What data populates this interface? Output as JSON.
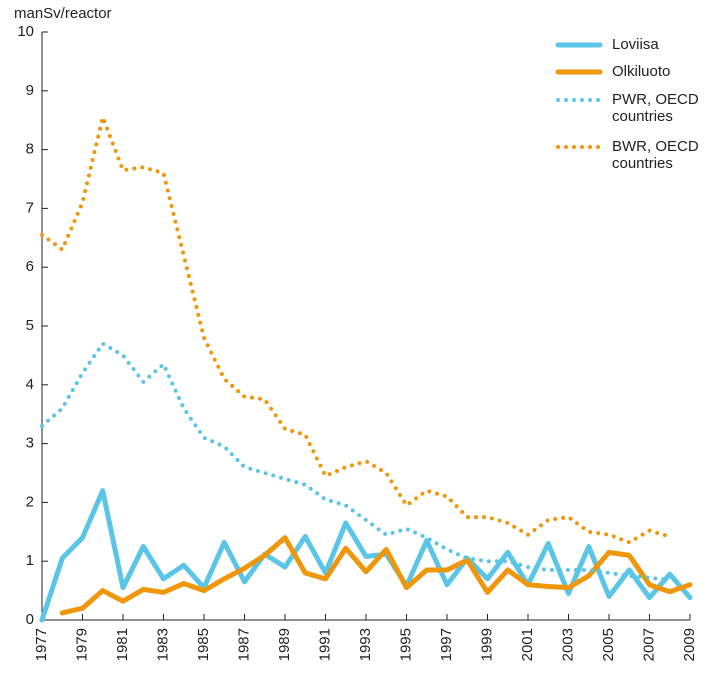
{
  "chart_data": {
    "type": "line",
    "ylabel": "manSv/reactor",
    "x": [
      1977,
      1978,
      1979,
      1980,
      1981,
      1982,
      1983,
      1984,
      1985,
      1986,
      1987,
      1988,
      1989,
      1990,
      1991,
      1992,
      1993,
      1994,
      1995,
      1996,
      1997,
      1998,
      1999,
      2000,
      2001,
      2002,
      2003,
      2004,
      2005,
      2006,
      2007,
      2008,
      2009
    ],
    "series": [
      {
        "name": "Loviisa",
        "color": "#5bc5e8",
        "style": "solid",
        "values": [
          0,
          1.05,
          1.4,
          2.2,
          0.55,
          1.25,
          0.7,
          0.93,
          0.55,
          1.32,
          0.65,
          1.12,
          0.9,
          1.42,
          0.8,
          1.65,
          1.08,
          1.12,
          0.58,
          1.35,
          0.6,
          1.05,
          0.7,
          1.15,
          0.6,
          1.3,
          0.45,
          1.25,
          0.4,
          0.85,
          0.38,
          0.78,
          0.38
        ]
      },
      {
        "name": "Olkiluoto",
        "color": "#f0960a",
        "style": "solid",
        "values": [
          null,
          0.12,
          0.2,
          0.5,
          0.32,
          0.52,
          0.47,
          0.62,
          0.5,
          0.7,
          0.88,
          1.1,
          1.4,
          0.8,
          0.7,
          1.22,
          0.82,
          1.2,
          0.55,
          0.85,
          0.85,
          1.02,
          0.47,
          0.85,
          0.6,
          0.57,
          0.55,
          0.75,
          1.15,
          1.1,
          0.6,
          0.48,
          0.6
        ]
      },
      {
        "name": "PWR, OECD countries",
        "color": "#5bc5e8",
        "style": "dotted",
        "values": [
          3.3,
          3.6,
          4.2,
          4.7,
          4.5,
          4.05,
          4.35,
          3.6,
          3.1,
          2.95,
          2.6,
          2.5,
          2.4,
          2.3,
          2.05,
          1.95,
          1.7,
          1.45,
          1.55,
          1.4,
          1.2,
          1.05,
          1.0,
          1.0,
          0.9,
          0.85,
          0.85,
          0.85,
          0.8,
          0.75,
          0.72,
          0.68,
          null
        ]
      },
      {
        "name": "BWR, OECD countries",
        "color": "#f0960a",
        "style": "dotted",
        "values": [
          6.55,
          6.3,
          7.1,
          8.55,
          7.65,
          7.7,
          7.6,
          6.2,
          4.8,
          4.1,
          3.8,
          3.75,
          3.25,
          3.15,
          2.45,
          2.6,
          2.7,
          2.5,
          1.95,
          2.2,
          2.1,
          1.75,
          1.75,
          1.65,
          1.45,
          1.7,
          1.75,
          1.5,
          1.45,
          1.32,
          1.52,
          1.42,
          null
        ]
      }
    ],
    "xlim": [
      1977,
      2009
    ],
    "xticks": [
      1977,
      1979,
      1981,
      1983,
      1985,
      1987,
      1989,
      1991,
      1993,
      1995,
      1997,
      1999,
      2001,
      2003,
      2005,
      2007,
      2009
    ],
    "ylim": [
      0,
      10
    ],
    "yticks": [
      0,
      1,
      2,
      3,
      4,
      5,
      6,
      7,
      8,
      9,
      10
    ]
  }
}
